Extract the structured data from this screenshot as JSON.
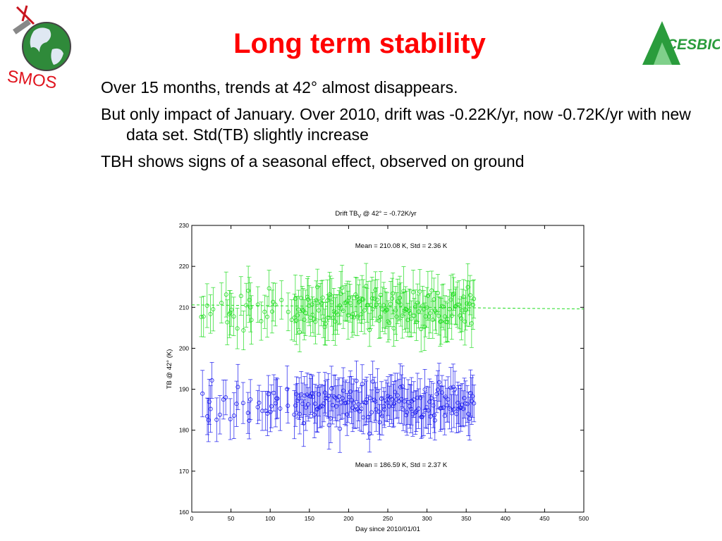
{
  "slide": {
    "title": "Long term stability",
    "bullets": [
      "Over 15 months, trends at 42° almost disappears.",
      "But only impact of January. Over 2010, drift was -0.22K/yr, now -0.72K/yr with new data set. Std(TB) slightly increase",
      "TBH shows signs of a seasonal effect, observed on ground"
    ]
  },
  "logos": {
    "smos": {
      "text": "SMOS",
      "color": "#e0141e"
    },
    "cesbio": {
      "text": "CESBIO",
      "color": "#2a9c3c"
    }
  },
  "chart_data": {
    "type": "scatter",
    "title_main": "Drift TB",
    "title_sub": "V",
    "title_rest": " @ 42° = -0.72K/yr",
    "xlabel": "Day since 2010/01/01",
    "ylabel": "TB @ 42° (K)",
    "xlim": [
      0,
      500
    ],
    "ylim": [
      160,
      230
    ],
    "xticks": [
      0,
      50,
      100,
      150,
      200,
      250,
      300,
      350,
      400,
      450,
      500
    ],
    "yticks": [
      160,
      170,
      180,
      190,
      200,
      210,
      220,
      230
    ],
    "grid": false,
    "day_range": [
      10,
      360
    ],
    "series": [
      {
        "color": "#22dd22",
        "mean": 210.08,
        "std": 2.36,
        "errorbar": 4,
        "trend": {
          "x": [
            0,
            500
          ],
          "y": [
            210.6,
            209.6
          ]
        },
        "annotation": "Mean = 210.08 K, Std = 2.36 K"
      },
      {
        "color": "#1a1aee",
        "mean": 186.59,
        "std": 2.37,
        "errorbar": 4,
        "annotation": "Mean = 186.59 K, Std = 2.37 K"
      }
    ]
  }
}
